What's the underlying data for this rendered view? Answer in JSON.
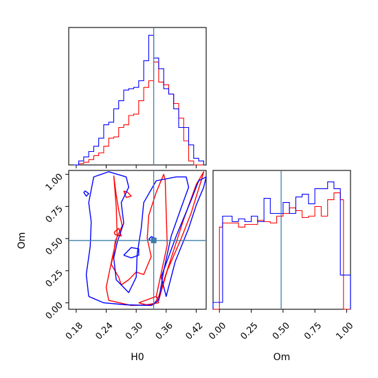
{
  "chart_data": {
    "type": "corner",
    "parameters": [
      "H0",
      "Om"
    ],
    "truths": {
      "H0": 0.335,
      "Om": 0.485
    },
    "colors": {
      "red": "#ff0000",
      "blue": "#0000ff",
      "truth": "#3b7fa8"
    },
    "axes": {
      "H0": {
        "range": [
          0.165,
          0.44
        ],
        "ticks": [
          "0.18",
          "0.24",
          "0.30",
          "0.36",
          "0.42"
        ]
      },
      "Om": {
        "range": [
          -0.05,
          1.03
        ],
        "ticks": [
          "0.00",
          "0.25",
          "0.50",
          "0.75",
          "1.00"
        ]
      }
    },
    "labels": {
      "x1": "H0",
      "x2": "Om",
      "y2": "Om"
    },
    "hist_H0": {
      "bin_edges": [
        0.175,
        0.185,
        0.195,
        0.205,
        0.215,
        0.225,
        0.235,
        0.245,
        0.255,
        0.265,
        0.275,
        0.285,
        0.295,
        0.305,
        0.315,
        0.325,
        0.335,
        0.345,
        0.355,
        0.365,
        0.375,
        0.385,
        0.395,
        0.405,
        0.415,
        0.425,
        0.435
      ],
      "series": [
        {
          "color": "red",
          "counts": [
            0,
            1,
            2,
            4,
            7,
            9,
            14,
            20,
            21,
            28,
            30,
            37,
            38,
            48,
            58,
            63,
            77,
            62,
            60,
            53,
            46,
            35,
            18,
            3,
            0,
            0
          ]
        },
        {
          "color": "blue",
          "counts": [
            0,
            3,
            6,
            10,
            14,
            20,
            30,
            32,
            42,
            48,
            56,
            57,
            58,
            63,
            78,
            97,
            80,
            72,
            57,
            53,
            42,
            28,
            28,
            15,
            5,
            3
          ]
        }
      ]
    },
    "hist_Om": {
      "bin_edges": [
        -0.05,
        0.0,
        0.025,
        0.1,
        0.15,
        0.2,
        0.25,
        0.3,
        0.35,
        0.4,
        0.45,
        0.5,
        0.55,
        0.6,
        0.65,
        0.7,
        0.75,
        0.8,
        0.85,
        0.9,
        0.95,
        0.975,
        1.03
      ],
      "series": [
        {
          "color": "red",
          "counts": [
            0,
            60,
            63,
            63,
            60,
            62,
            62,
            65,
            64,
            63,
            68,
            70,
            74,
            72,
            67,
            68,
            75,
            68,
            80,
            85,
            80,
            0
          ]
        },
        {
          "color": "blue",
          "counts": [
            5,
            5,
            68,
            64,
            66,
            64,
            68,
            64,
            81,
            70,
            70,
            78,
            70,
            82,
            84,
            77,
            88,
            88,
            93,
            88,
            25,
            25
          ]
        }
      ]
    },
    "contours": [
      {
        "color": "red",
        "points": [
          [
            0.255,
            0.99
          ],
          [
            0.26,
            0.75
          ],
          [
            0.262,
            0.52
          ],
          [
            0.252,
            0.35
          ],
          [
            0.24,
            0.12
          ],
          [
            0.245,
            0.02
          ],
          [
            0.29,
            -0.02
          ],
          [
            0.335,
            -0.015
          ],
          [
            0.345,
            0.05
          ],
          [
            0.37,
            0.35
          ],
          [
            0.395,
            0.65
          ],
          [
            0.42,
            0.92
          ],
          [
            0.435,
            1.02
          ],
          [
            0.43,
            0.95
          ],
          [
            0.41,
            0.7
          ],
          [
            0.39,
            0.5
          ],
          [
            0.362,
            0.25
          ],
          [
            0.345,
            0.02
          ],
          [
            0.34,
            0.05
          ],
          [
            0.362,
            0.45
          ],
          [
            0.358,
            0.95
          ],
          [
            0.355,
            1.0
          ],
          [
            0.34,
            0.86
          ],
          [
            0.325,
            0.68
          ],
          [
            0.322,
            0.5
          ],
          [
            0.33,
            0.36
          ],
          [
            0.315,
            0.22
          ],
          [
            0.3,
            0.24
          ],
          [
            0.285,
            0.18
          ],
          [
            0.27,
            0.14
          ],
          [
            0.265,
            0.2
          ],
          [
            0.25,
            0.3
          ],
          [
            0.255,
            0.38
          ],
          [
            0.258,
            0.48
          ],
          [
            0.272,
            0.6
          ],
          [
            0.265,
            0.72
          ],
          [
            0.26,
            0.84
          ],
          [
            0.255,
            0.99
          ]
        ]
      },
      {
        "color": "red",
        "points": [
          [
            0.305,
            0.0
          ],
          [
            0.32,
            -0.015
          ],
          [
            0.345,
            0.0
          ],
          [
            0.34,
            0.05
          ],
          [
            0.305,
            0.0
          ]
        ]
      },
      {
        "color": "red",
        "points": [
          [
            0.275,
            0.87
          ],
          [
            0.283,
            0.86
          ],
          [
            0.29,
            0.83
          ],
          [
            0.28,
            0.82
          ],
          [
            0.275,
            0.87
          ]
        ]
      },
      {
        "color": "red",
        "points": [
          [
            0.256,
            0.55
          ],
          [
            0.265,
            0.58
          ],
          [
            0.27,
            0.52
          ],
          [
            0.258,
            0.53
          ],
          [
            0.256,
            0.55
          ]
        ]
      },
      {
        "color": "blue",
        "points": [
          [
            0.205,
            0.05
          ],
          [
            0.2,
            0.22
          ],
          [
            0.208,
            0.44
          ],
          [
            0.21,
            0.63
          ],
          [
            0.205,
            0.78
          ],
          [
            0.215,
            0.98
          ],
          [
            0.245,
            1.02
          ],
          [
            0.28,
            0.98
          ],
          [
            0.285,
            0.9
          ],
          [
            0.27,
            0.78
          ],
          [
            0.275,
            0.62
          ],
          [
            0.262,
            0.47
          ],
          [
            0.255,
            0.35
          ],
          [
            0.26,
            0.18
          ],
          [
            0.285,
            0.08
          ],
          [
            0.3,
            0.2
          ],
          [
            0.302,
            0.38
          ],
          [
            0.31,
            0.58
          ],
          [
            0.315,
            0.78
          ],
          [
            0.34,
            0.95
          ],
          [
            0.38,
            0.98
          ],
          [
            0.4,
            0.98
          ],
          [
            0.405,
            0.9
          ],
          [
            0.39,
            0.74
          ],
          [
            0.37,
            0.52
          ],
          [
            0.355,
            0.25
          ],
          [
            0.345,
            0.02
          ],
          [
            0.33,
            -0.02
          ],
          [
            0.28,
            -0.015
          ],
          [
            0.235,
            0.0
          ],
          [
            0.205,
            0.05
          ]
        ]
      },
      {
        "color": "blue",
        "points": [
          [
            0.35,
            0.2
          ],
          [
            0.38,
            0.52
          ],
          [
            0.41,
            0.8
          ],
          [
            0.425,
            0.95
          ],
          [
            0.44,
            0.98
          ],
          [
            0.435,
            0.9
          ],
          [
            0.42,
            0.76
          ],
          [
            0.405,
            0.58
          ],
          [
            0.378,
            0.32
          ],
          [
            0.36,
            0.05
          ],
          [
            0.35,
            0.2
          ]
        ]
      },
      {
        "color": "blue",
        "points": [
          [
            0.195,
            0.86
          ],
          [
            0.2,
            0.83
          ],
          [
            0.205,
            0.85
          ],
          [
            0.198,
            0.87
          ],
          [
            0.195,
            0.86
          ]
        ]
      },
      {
        "color": "blue",
        "points": [
          [
            0.275,
            0.37
          ],
          [
            0.29,
            0.35
          ],
          [
            0.305,
            0.37
          ],
          [
            0.305,
            0.42
          ],
          [
            0.29,
            0.43
          ],
          [
            0.275,
            0.37
          ]
        ]
      },
      {
        "color": "blue",
        "points": [
          [
            0.325,
            0.495
          ],
          [
            0.335,
            0.47
          ],
          [
            0.34,
            0.5
          ],
          [
            0.33,
            0.515
          ],
          [
            0.325,
            0.495
          ]
        ]
      }
    ]
  }
}
